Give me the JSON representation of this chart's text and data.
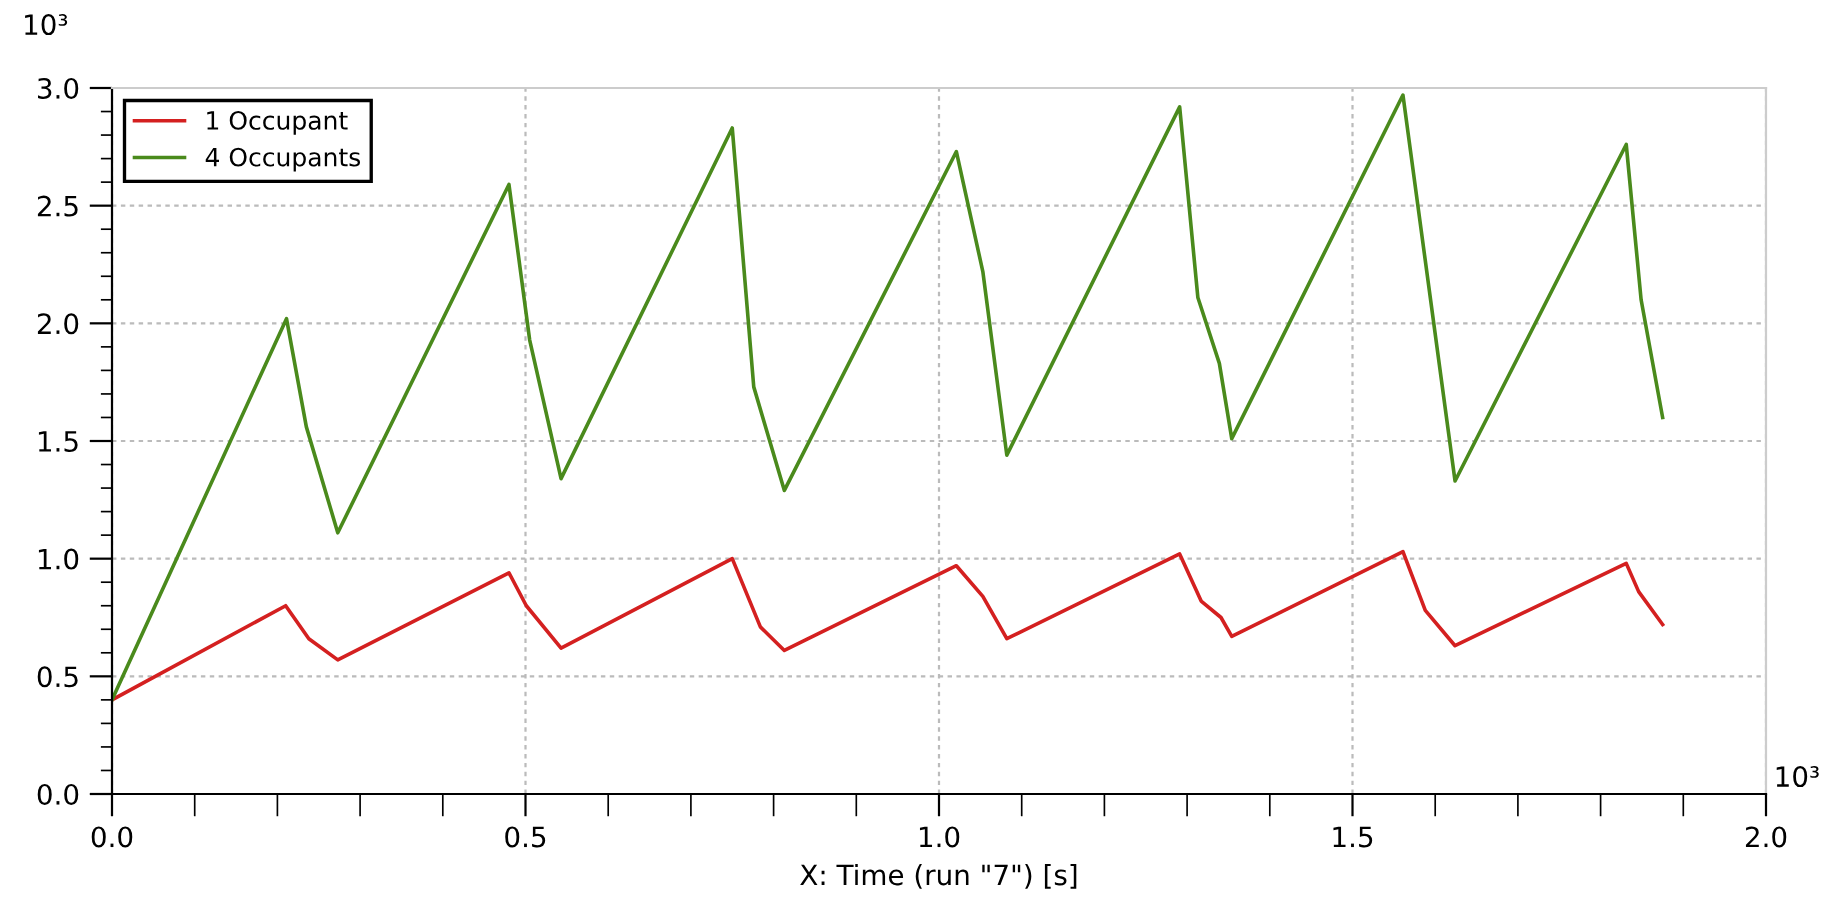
{
  "chart_data": {
    "type": "line",
    "xlabel": "X: Time (run \"7\") [s]",
    "annotations": [
      "10³",
      "10³"
    ],
    "xlim": [
      0,
      2.0
    ],
    "ylim": [
      0,
      3.0
    ],
    "xticks": [
      {
        "value": 0,
        "label": "0.0"
      },
      {
        "value": 0.1,
        "label": null
      },
      {
        "value": 0.2,
        "label": null
      },
      {
        "value": 0.3,
        "label": null
      },
      {
        "value": 0.4,
        "label": null
      },
      0.5,
      {
        "value": 0.6,
        "label": null
      },
      {
        "value": 0.7,
        "label": null
      },
      {
        "value": 0.8,
        "label": null
      },
      {
        "value": 0.9,
        "label": null
      },
      {
        "value": 1,
        "label": "1.0"
      },
      {
        "value": 1.1,
        "label": null
      },
      {
        "value": 1.2,
        "label": null
      },
      {
        "value": 1.3,
        "label": null
      },
      {
        "value": 1.4,
        "label": null
      },
      1.5,
      {
        "value": 1.6,
        "label": null
      },
      {
        "value": 1.7,
        "label": null
      },
      {
        "value": 1.8,
        "label": null
      },
      {
        "value": 1.9,
        "label": null
      },
      {
        "value": 2,
        "label": "2.0"
      }
    ],
    "yticks": [
      {
        "value": 0,
        "label": "0.0"
      },
      {
        "value": 0.1,
        "label": null
      },
      {
        "value": 0.2,
        "label": null
      },
      {
        "value": 0.3,
        "label": null
      },
      {
        "value": 0.4,
        "label": null
      },
      0.5,
      {
        "value": 0.6,
        "label": null
      },
      {
        "value": 0.7,
        "label": null
      },
      {
        "value": 0.8,
        "label": null
      },
      {
        "value": 0.9,
        "label": null
      },
      {
        "value": 1,
        "label": "1.0"
      },
      {
        "value": 1.1,
        "label": null
      },
      {
        "value": 1.2,
        "label": null
      },
      {
        "value": 1.3,
        "label": null
      },
      {
        "value": 1.4,
        "label": null
      },
      1.5,
      {
        "value": 1.6,
        "label": null
      },
      {
        "value": 1.7,
        "label": null
      },
      {
        "value": 1.8,
        "label": null
      },
      {
        "value": 1.9,
        "label": null
      },
      {
        "value": 2,
        "label": "2.0"
      },
      {
        "value": 2.1,
        "label": null
      },
      {
        "value": 2.2,
        "label": null
      },
      {
        "value": 2.3,
        "label": null
      },
      {
        "value": 2.4,
        "label": null
      },
      2.5,
      {
        "value": 2.6,
        "label": null
      },
      {
        "value": 2.7,
        "label": null
      },
      {
        "value": 2.8,
        "label": null
      },
      {
        "value": 2.9,
        "label": null
      },
      {
        "value": 3,
        "label": "3.0"
      }
    ],
    "grid": true,
    "legend": "top left",
    "series": [
      {
        "name": "1 Occupant",
        "color": "#d42020",
        "x": [
          0,
          0.21,
          0.238,
          0.273,
          0.48,
          0.501,
          0.543,
          0.75,
          0.784,
          0.813,
          1.021,
          1.053,
          1.082,
          1.291,
          1.317,
          1.341,
          1.354,
          1.561,
          1.588,
          1.624,
          1.831,
          1.846,
          1.875
        ],
        "values": [
          0.4,
          0.8,
          0.66,
          0.57,
          0.94,
          0.8,
          0.62,
          1.0,
          0.71,
          0.61,
          0.97,
          0.84,
          0.66,
          1.02,
          0.82,
          0.75,
          0.67,
          1.03,
          0.78,
          0.63,
          0.98,
          0.86,
          0.72
        ]
      },
      {
        "name": "4 Occupants",
        "color": "#4a8a1c",
        "x": [
          0,
          0.211,
          0.235,
          0.273,
          0.48,
          0.505,
          0.543,
          0.75,
          0.776,
          0.813,
          1.021,
          1.053,
          1.082,
          1.291,
          1.313,
          1.339,
          1.354,
          1.561,
          1.624,
          1.831,
          1.849,
          1.875
        ],
        "values": [
          0.4,
          2.02,
          1.56,
          1.11,
          2.59,
          1.93,
          1.34,
          2.83,
          1.73,
          1.29,
          2.73,
          2.22,
          1.44,
          2.92,
          2.11,
          1.83,
          1.51,
          2.97,
          1.33,
          2.76,
          2.1,
          1.6
        ]
      }
    ]
  }
}
